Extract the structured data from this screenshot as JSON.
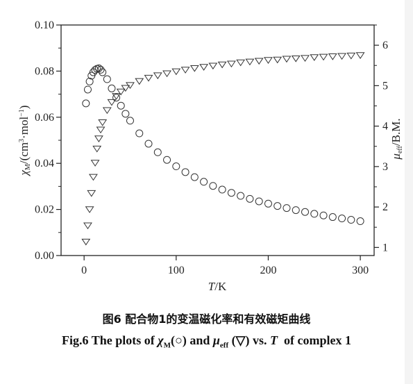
{
  "chart_data": {
    "type": "scatter",
    "x_axis": {
      "label_var": "T",
      "label_unit": "/K",
      "range": [
        -25,
        315
      ],
      "ticks": [
        0,
        100,
        200,
        300
      ]
    },
    "y_left": {
      "label_parts": {
        "sym": "χ",
        "sub": "M",
        "pre_unit": "/(cm",
        "sup1": "3",
        "mid": "·mol",
        "sup2": "−1",
        "post": ")"
      },
      "range": [
        0.0,
        0.1
      ],
      "ticks": [
        "0.00",
        "0.02",
        "0.04",
        "0.06",
        "0.08",
        "0.10"
      ]
    },
    "y_right": {
      "label_parts": {
        "sym": "μ",
        "sub": "eff",
        "unit": "/B.M."
      },
      "range": [
        0.8,
        6.5
      ],
      "ticks": [
        1,
        2,
        3,
        4,
        5,
        6
      ]
    },
    "series": [
      {
        "marker": "circle",
        "axis": "left",
        "points": [
          [
            2,
            0.066
          ],
          [
            4,
            0.072
          ],
          [
            6,
            0.0755
          ],
          [
            8,
            0.078
          ],
          [
            10,
            0.0795
          ],
          [
            12,
            0.0805
          ],
          [
            14,
            0.081
          ],
          [
            16,
            0.0812
          ],
          [
            18,
            0.0806
          ],
          [
            20,
            0.0795
          ],
          [
            25,
            0.0765
          ],
          [
            30,
            0.0725
          ],
          [
            35,
            0.0685
          ],
          [
            40,
            0.065
          ],
          [
            45,
            0.0615
          ],
          [
            50,
            0.0585
          ],
          [
            60,
            0.053
          ],
          [
            70,
            0.0485
          ],
          [
            80,
            0.0448
          ],
          [
            90,
            0.0415
          ],
          [
            100,
            0.0387
          ],
          [
            110,
            0.0362
          ],
          [
            120,
            0.034
          ],
          [
            130,
            0.032
          ],
          [
            140,
            0.0302
          ],
          [
            150,
            0.0286
          ],
          [
            160,
            0.0272
          ],
          [
            170,
            0.0259
          ],
          [
            180,
            0.0246
          ],
          [
            190,
            0.0235
          ],
          [
            200,
            0.0225
          ],
          [
            210,
            0.0215
          ],
          [
            220,
            0.0206
          ],
          [
            230,
            0.0197
          ],
          [
            240,
            0.0189
          ],
          [
            250,
            0.0181
          ],
          [
            260,
            0.0174
          ],
          [
            270,
            0.0167
          ],
          [
            280,
            0.0161
          ],
          [
            290,
            0.0155
          ],
          [
            300,
            0.0149
          ]
        ]
      },
      {
        "marker": "triangle-down",
        "axis": "right",
        "points": [
          [
            2,
            1.15
          ],
          [
            4,
            1.55
          ],
          [
            6,
            1.95
          ],
          [
            8,
            2.35
          ],
          [
            10,
            2.75
          ],
          [
            12,
            3.1
          ],
          [
            14,
            3.45
          ],
          [
            16,
            3.7
          ],
          [
            18,
            3.92
          ],
          [
            20,
            4.1
          ],
          [
            25,
            4.4
          ],
          [
            30,
            4.6
          ],
          [
            35,
            4.75
          ],
          [
            40,
            4.86
          ],
          [
            45,
            4.95
          ],
          [
            50,
            5.02
          ],
          [
            60,
            5.12
          ],
          [
            70,
            5.2
          ],
          [
            80,
            5.26
          ],
          [
            90,
            5.31
          ],
          [
            100,
            5.36
          ],
          [
            110,
            5.4
          ],
          [
            120,
            5.44
          ],
          [
            130,
            5.47
          ],
          [
            140,
            5.5
          ],
          [
            150,
            5.53
          ],
          [
            160,
            5.55
          ],
          [
            170,
            5.58
          ],
          [
            180,
            5.6
          ],
          [
            190,
            5.62
          ],
          [
            200,
            5.64
          ],
          [
            210,
            5.65
          ],
          [
            220,
            5.67
          ],
          [
            230,
            5.68
          ],
          [
            240,
            5.69
          ],
          [
            250,
            5.71
          ],
          [
            260,
            5.72
          ],
          [
            270,
            5.73
          ],
          [
            280,
            5.74
          ],
          [
            290,
            5.75
          ],
          [
            300,
            5.76
          ]
        ]
      }
    ]
  },
  "caption": {
    "cn": "图6 配合物1的变温磁化率和有效磁矩曲线",
    "en_parts": {
      "p1": "Fig.6 The plots of ",
      "chi": "χ",
      "chi_sub": "M",
      "p2": "(○) and ",
      "mu": "μ",
      "mu_sub": "eff",
      "p3": " (▽) vs. ",
      "T": "T",
      "p4": "  of complex 1"
    }
  }
}
